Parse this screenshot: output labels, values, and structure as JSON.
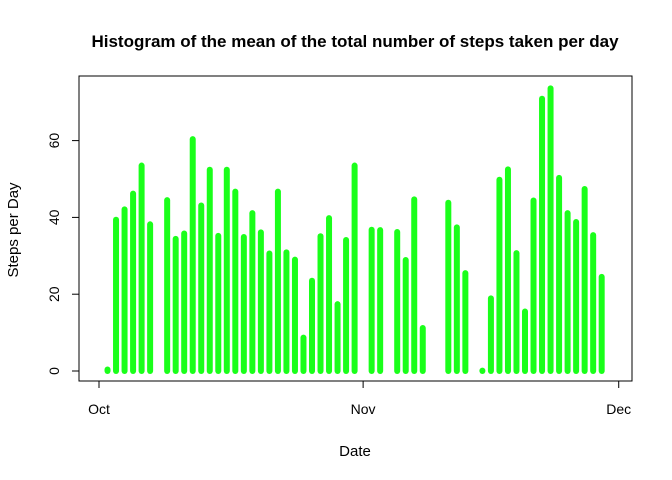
{
  "chart_data": {
    "type": "bar",
    "title": "Histogram of the mean of the total number of steps taken per day",
    "xlabel": "Date",
    "ylabel": "Steps per Day",
    "bar_color": "#1aff1a",
    "x_ticks": [
      "Oct",
      "Nov",
      "Dec"
    ],
    "y_ticks": [
      0,
      20,
      40,
      60
    ],
    "ylim": [
      0,
      75
    ],
    "grid": false,
    "x": [
      "2012-10-02",
      "2012-10-03",
      "2012-10-04",
      "2012-10-05",
      "2012-10-06",
      "2012-10-07",
      "2012-10-09",
      "2012-10-10",
      "2012-10-11",
      "2012-10-12",
      "2012-10-13",
      "2012-10-14",
      "2012-10-15",
      "2012-10-16",
      "2012-10-17",
      "2012-10-18",
      "2012-10-19",
      "2012-10-20",
      "2012-10-21",
      "2012-10-22",
      "2012-10-23",
      "2012-10-24",
      "2012-10-25",
      "2012-10-26",
      "2012-10-27",
      "2012-10-28",
      "2012-10-29",
      "2012-10-30",
      "2012-10-31",
      "2012-11-02",
      "2012-11-03",
      "2012-11-05",
      "2012-11-06",
      "2012-11-07",
      "2012-11-08",
      "2012-11-11",
      "2012-11-12",
      "2012-11-13",
      "2012-11-15",
      "2012-11-16",
      "2012-11-17",
      "2012-11-18",
      "2012-11-19",
      "2012-11-20",
      "2012-11-21",
      "2012-11-22",
      "2012-11-23",
      "2012-11-24",
      "2012-11-25",
      "2012-11-26",
      "2012-11-27",
      "2012-11-28",
      "2012-11-29"
    ],
    "values": [
      0.4,
      39.4,
      42.1,
      46.2,
      53.5,
      38.2,
      44.5,
      34.4,
      35.8,
      60.4,
      43.1,
      52.4,
      35.2,
      52.4,
      46.7,
      34.9,
      41.1,
      36.1,
      30.6,
      46.7,
      30.9,
      29.0,
      8.7,
      23.5,
      35.1,
      39.8,
      17.4,
      34.1,
      53.5,
      36.8,
      36.7,
      36.2,
      28.9,
      44.7,
      11.2,
      43.8,
      37.4,
      25.5,
      0.1,
      18.9,
      49.8,
      52.5,
      30.7,
      15.5,
      44.4,
      70.9,
      73.6,
      50.3,
      41.1,
      38.8,
      47.4,
      35.4,
      24.5
    ]
  }
}
